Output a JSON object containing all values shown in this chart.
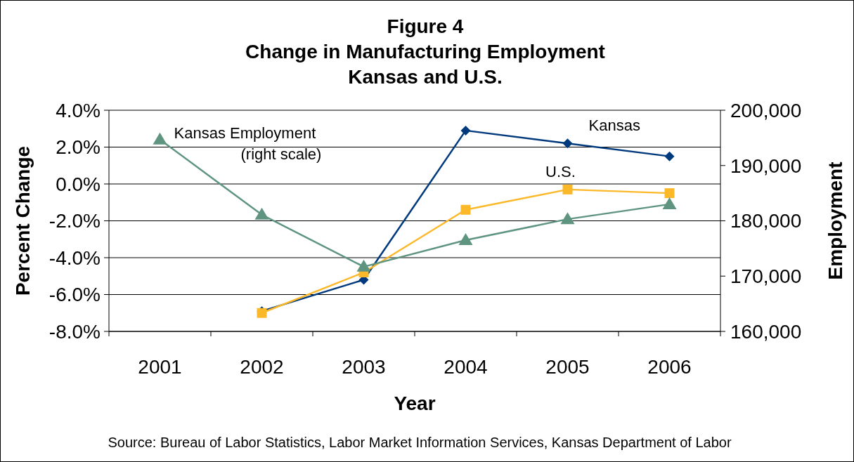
{
  "chart_data": {
    "type": "line",
    "title": "Figure 4\nChange in Manufacturing Employment\nKansas and U.S.",
    "xlabel": "Year",
    "ylabel": "Percent Change",
    "y2label": "Employment",
    "categories": [
      "2001",
      "2002",
      "2003",
      "2004",
      "2005",
      "2006"
    ],
    "series": [
      {
        "name": "Kansas",
        "color": "#003a7d",
        "marker": "diamond",
        "values": [
          null,
          -6.9,
          -5.2,
          2.9,
          2.2,
          1.5
        ]
      },
      {
        "name": "U.S.",
        "color": "#fbb829",
        "marker": "square",
        "values": [
          null,
          -7.0,
          -4.8,
          -1.4,
          -0.3,
          -0.5
        ]
      },
      {
        "name": "Kansas Employment (right scale)",
        "color": "#5f9580",
        "marker": "triangle",
        "axis": "y2",
        "values": [
          194700,
          181100,
          171700,
          176500,
          180300,
          183000
        ]
      }
    ],
    "ylim": [
      -8,
      4
    ],
    "yticks": [
      {
        "value": -8,
        "label": "-8.0%"
      },
      {
        "value": -6,
        "label": "-6.0%"
      },
      {
        "value": -4,
        "label": "-4.0%"
      },
      {
        "value": -2,
        "label": "-2.0%"
      },
      {
        "value": 0,
        "label": "0.0%"
      },
      {
        "value": 2,
        "label": "2.0%"
      },
      {
        "value": 4,
        "label": "4.0%"
      }
    ],
    "y2lim": [
      160000,
      200000
    ],
    "y2ticks": [
      {
        "value": 160000,
        "label": "160,000"
      },
      {
        "value": 170000,
        "label": "170,000"
      },
      {
        "value": 180000,
        "label": "180,000"
      },
      {
        "value": 190000,
        "label": "190,000"
      },
      {
        "value": 200000,
        "label": "200,000"
      }
    ],
    "grid": "y",
    "annotations": [
      "Source: Bureau of Labor Statistics, Labor Market Information Services, Kansas Department of Labor"
    ]
  }
}
